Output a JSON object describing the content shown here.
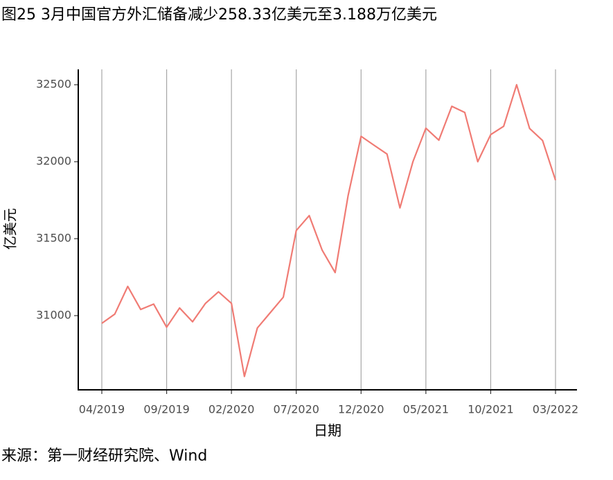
{
  "chart_data": {
    "type": "line",
    "title": "图25 3月中国官方外汇储备减少258.33亿美元至3.188万亿美元",
    "x_label": "日期",
    "y_label": "亿美元",
    "source": "来源：第一财经研究院、Wind",
    "categories": [
      "04/2019",
      null,
      null,
      null,
      null,
      "09/2019",
      null,
      null,
      null,
      null,
      "02/2020",
      null,
      null,
      null,
      null,
      "07/2020",
      null,
      null,
      null,
      null,
      "12/2020",
      null,
      null,
      null,
      null,
      "05/2021",
      null,
      null,
      null,
      null,
      "10/2021",
      null,
      null,
      null,
      null,
      "03/2022"
    ],
    "values": [
      30950,
      31010,
      31190,
      31040,
      31075,
      30925,
      31050,
      30960,
      31080,
      31155,
      31080,
      30605,
      30920,
      31020,
      31120,
      31553,
      31650,
      31425,
      31280,
      31780,
      32165,
      32107,
      32050,
      31700,
      32000,
      32218,
      32140,
      32360,
      32320,
      32000,
      32176,
      32230,
      32500,
      32216,
      32138,
      31880
    ],
    "color": "#f07b74",
    "ylim": [
      30518,
      32600
    ],
    "yticks": [
      31000,
      31500,
      32000,
      32500
    ],
    "grid": true
  }
}
